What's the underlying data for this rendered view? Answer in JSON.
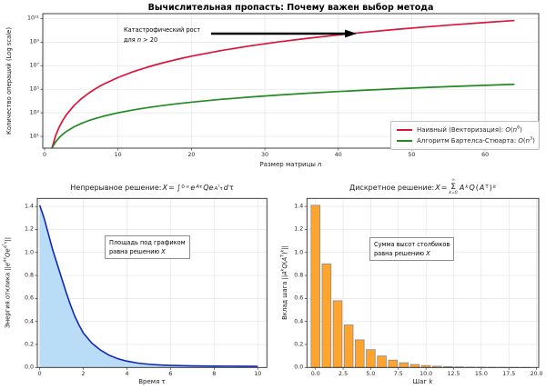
{
  "figure": {
    "background": "#ffffff"
  },
  "chart_data": [
    {
      "id": "complexity",
      "type": "line",
      "title": "Вычислительная пропасть: Почему важен выбор метода",
      "xlabel_html": "Размер матрицы <i>n</i>",
      "ylabel": "Количество операций (Log scale)",
      "log_y": true,
      "xlim": [
        -0.25,
        67.3
      ],
      "ylim_log": [
        0,
        11.42
      ],
      "grid": true,
      "legend_position": "lower right",
      "annotation_html": "Катастрофический рост<br>для <i>n</i> &gt; 20",
      "x_ticks": [
        {
          "v": 0,
          "label": "0"
        },
        {
          "v": 10,
          "label": "10"
        },
        {
          "v": 20,
          "label": "20"
        },
        {
          "v": 30,
          "label": "30"
        },
        {
          "v": 40,
          "label": "40"
        },
        {
          "v": 50,
          "label": "50"
        },
        {
          "v": 60,
          "label": "60"
        }
      ],
      "y_ticks": [
        {
          "v": 10,
          "label": "10¹"
        },
        {
          "v": 1000,
          "label": "10³"
        },
        {
          "v": 100000,
          "label": "10⁵"
        },
        {
          "v": 10000000,
          "label": "10⁷"
        },
        {
          "v": 1000000000,
          "label": "10⁹"
        },
        {
          "v": 100000000000,
          "label": "10¹¹"
        }
      ],
      "legend": [
        {
          "label_html": "Наивный (Векторизация): <i>O</i>(<i>n</i><sup>6</sup>)",
          "color": "#DC143C"
        },
        {
          "label_html": "Алгоритм Бартелса-Стюарта: <i>O</i>(<i>n</i><sup>3</sup>)",
          "color": "#228B22"
        }
      ],
      "series": [
        {
          "name": "naive-vectorization-On6",
          "color": "#DC143C",
          "x": [
            1,
            1.5,
            2,
            2.5,
            3,
            4,
            5,
            6,
            7,
            8,
            10,
            12,
            14,
            16,
            18,
            20,
            24,
            28,
            32,
            36,
            40,
            44,
            48,
            52,
            56,
            60,
            64
          ],
          "y": [
            1,
            11.39,
            64,
            244.14,
            729,
            4096,
            15625,
            46656,
            117649,
            262144,
            1000000,
            2985984,
            7529536,
            16777216,
            34012224,
            64000000,
            191102976,
            481890304,
            1073741824,
            2176782336,
            4096000000,
            7256313856,
            12230590464,
            19770609664,
            30840979456,
            46656000000,
            68719476736
          ]
        },
        {
          "name": "bartels-stewart-On3",
          "color": "#228B22",
          "x": [
            1,
            1.5,
            2,
            2.5,
            3,
            4,
            5,
            6,
            7,
            8,
            10,
            12,
            14,
            16,
            18,
            20,
            24,
            28,
            32,
            36,
            40,
            44,
            48,
            52,
            56,
            60,
            64
          ],
          "y": [
            1,
            3.375,
            8,
            15.625,
            27,
            64,
            125,
            216,
            343,
            512,
            1000,
            1728,
            2744,
            4096,
            5832,
            8000,
            13824,
            21952,
            32768,
            46656,
            64000,
            85184,
            110592,
            140608,
            175616,
            216000,
            262144
          ]
        }
      ]
    },
    {
      "id": "continuous",
      "type": "area",
      "title_html": "Непрерывное решение: <i>X</i> = ∫<sub>0</sub><sup>∞</sup><i>e</i><sup><i>A</i>τ</sup><i>Qe</i><sup><i>A</i><sup>T</sup>τ</sup><i>d</i>τ",
      "xlabel": "Время τ",
      "ylabel_html": "Энергия отклика ||<i>e</i><sup><i>A</i>τ</sup><i>Qe</i><sup><i>A</i><sup>T</sup>τ</sup>||",
      "annotation_html": "Площадь под графиком<br>равна решению <i>X</i>",
      "line_color": "#1428b4",
      "fill_color": "#b9dcf7",
      "xlim": [
        -0.11,
        10.42
      ],
      "ylim": [
        0,
        1.47
      ],
      "grid": true,
      "x_ticks": [
        {
          "v": 0,
          "label": "0"
        },
        {
          "v": 2,
          "label": "2"
        },
        {
          "v": 4,
          "label": "4"
        },
        {
          "v": 6,
          "label": "6"
        },
        {
          "v": 8,
          "label": "8"
        },
        {
          "v": 10,
          "label": "10"
        }
      ],
      "y_ticks": [
        {
          "v": 0,
          "label": "0.0"
        },
        {
          "v": 0.2,
          "label": "0.2"
        },
        {
          "v": 0.4,
          "label": "0.4"
        },
        {
          "v": 0.6,
          "label": "0.6"
        },
        {
          "v": 0.8,
          "label": "0.8"
        },
        {
          "v": 1.0,
          "label": "1.0"
        },
        {
          "v": 1.2,
          "label": "1.2"
        },
        {
          "v": 1.4,
          "label": "1.4"
        }
      ],
      "x": [
        0,
        0.2,
        0.4,
        0.6,
        0.8,
        1.0,
        1.2,
        1.4,
        1.6,
        1.8,
        2.0,
        2.4,
        2.8,
        3.2,
        3.6,
        4.0,
        4.5,
        5.0,
        5.5,
        6.0,
        7.0,
        8.0,
        9.0,
        10.0
      ],
      "y": [
        1.41,
        1.3,
        1.16,
        1.02,
        0.9,
        0.78,
        0.66,
        0.55,
        0.45,
        0.37,
        0.3,
        0.21,
        0.15,
        0.105,
        0.075,
        0.055,
        0.038,
        0.028,
        0.022,
        0.018,
        0.014,
        0.012,
        0.011,
        0.01
      ]
    },
    {
      "id": "discrete",
      "type": "bar",
      "title_html": "Дискретное решение: <i>X</i> = <span class='sum'><span class='s-top'>∞</span><span class='s-mid'>Σ</span><span class='s-bot'><i>k</i>=0</span></span> <i>A</i><sup><i>k</i></sup><i>Q</i>(<i>A</i><sup>T</sup>)<sup><i>k</i></sup>",
      "xlabel_html": "Шаг <i>k</i>",
      "ylabel_html": "Вклад шага ||<i>A</i><sup><i>k</i></sup><i>Q</i>(<i>A</i><sup>T</sup>)<sup><i>k</i></sup>||",
      "annotation_html": "Сумма высот столбиков<br>равна решению <i>X</i>",
      "bar_color": "#FFA42C",
      "bar_edge": "#8c8c8c",
      "xlim": [
        -0.775,
        20.2
      ],
      "ylim": [
        0,
        1.47
      ],
      "grid": true,
      "x_ticks": [
        {
          "v": 0,
          "label": "0.0"
        },
        {
          "v": 2.5,
          "label": "2.5"
        },
        {
          "v": 5,
          "label": "5.0"
        },
        {
          "v": 7.5,
          "label": "7.5"
        },
        {
          "v": 10,
          "label": "10.0"
        },
        {
          "v": 12.5,
          "label": "12.5"
        },
        {
          "v": 15,
          "label": "15.0"
        },
        {
          "v": 17.5,
          "label": "17.5"
        },
        {
          "v": 20,
          "label": "20.0"
        }
      ],
      "y_ticks": [
        {
          "v": 0,
          "label": "0.0"
        },
        {
          "v": 0.2,
          "label": "0.2"
        },
        {
          "v": 0.4,
          "label": "0.4"
        },
        {
          "v": 0.6,
          "label": "0.6"
        },
        {
          "v": 0.8,
          "label": "0.8"
        },
        {
          "v": 1.0,
          "label": "1.0"
        },
        {
          "v": 1.2,
          "label": "1.2"
        },
        {
          "v": 1.4,
          "label": "1.4"
        }
      ],
      "categories": [
        0,
        1,
        2,
        3,
        4,
        5,
        6,
        7,
        8,
        9,
        10,
        11,
        12,
        13,
        14,
        15,
        16,
        17,
        18,
        19
      ],
      "values": [
        1.41,
        0.9,
        0.58,
        0.37,
        0.24,
        0.155,
        0.1,
        0.064,
        0.041,
        0.026,
        0.017,
        0.011,
        0.007,
        0.0045,
        0.003,
        0.002,
        0.0012,
        0.0008,
        0.0005,
        0.0003
      ]
    }
  ]
}
